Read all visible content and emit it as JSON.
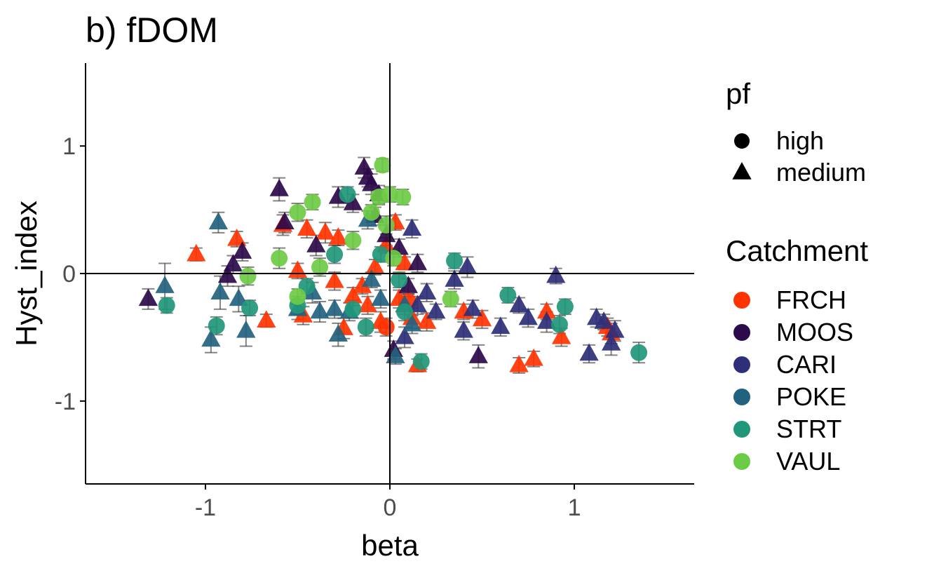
{
  "chart_data": {
    "type": "scatter",
    "title": "b) fDOM",
    "xlabel": "beta",
    "ylabel": "Hyst_index",
    "xlim": [
      -1.65,
      1.65
    ],
    "ylim": [
      -1.65,
      1.65
    ],
    "x_ticks": [
      -1,
      0,
      1
    ],
    "y_ticks": [
      -1,
      0,
      1
    ],
    "x_tick_labels": [
      "-1",
      "0",
      "1"
    ],
    "y_tick_labels": [
      "-1",
      "0",
      "1"
    ],
    "reference_lines": {
      "x": 0,
      "y": 0
    },
    "error_bars": true,
    "grid": false,
    "legend_position": "right",
    "legends": {
      "shape": {
        "title": "pf",
        "entries": [
          {
            "label": "high",
            "shape": "circle"
          },
          {
            "label": "medium",
            "shape": "triangle"
          }
        ]
      },
      "color": {
        "title": "Catchment",
        "entries": [
          {
            "label": "FRCH",
            "color": "#FF3300"
          },
          {
            "label": "MOOS",
            "color": "#2D0A4A"
          },
          {
            "label": "CARI",
            "color": "#2E2F78"
          },
          {
            "label": "POKE",
            "color": "#23627E"
          },
          {
            "label": "STRT",
            "color": "#21977A"
          },
          {
            "label": "VAUL",
            "color": "#6CCB44"
          }
        ]
      }
    },
    "series": [
      {
        "name": "FRCH",
        "points": [
          {
            "x": -1.05,
            "y": 0.15,
            "s": "t",
            "e": 0.05
          },
          {
            "x": -0.83,
            "y": 0.27,
            "s": "t",
            "e": 0.06
          },
          {
            "x": -0.67,
            "y": -0.37,
            "s": "t",
            "e": 0.05
          },
          {
            "x": -0.58,
            "y": 0.38,
            "s": "t",
            "e": 0.08
          },
          {
            "x": -0.5,
            "y": 0.02,
            "s": "t",
            "e": 0.06
          },
          {
            "x": -0.47,
            "y": -0.33,
            "s": "t",
            "e": 0.07
          },
          {
            "x": -0.45,
            "y": 0.35,
            "s": "t",
            "e": 0.07
          },
          {
            "x": -0.35,
            "y": 0.32,
            "s": "t",
            "e": 0.08
          },
          {
            "x": -0.3,
            "y": -0.06,
            "s": "t",
            "e": 0.07
          },
          {
            "x": -0.28,
            "y": 0.28,
            "s": "t",
            "e": 0.06
          },
          {
            "x": -0.25,
            "y": -0.43,
            "s": "t",
            "e": 0.08
          },
          {
            "x": -0.2,
            "y": -0.18,
            "s": "t",
            "e": 0.07
          },
          {
            "x": -0.15,
            "y": -0.1,
            "s": "t",
            "e": 0.06
          },
          {
            "x": -0.12,
            "y": -0.25,
            "s": "t",
            "e": 0.07
          },
          {
            "x": -0.08,
            "y": 0.05,
            "s": "t",
            "e": 0.06
          },
          {
            "x": -0.05,
            "y": -0.38,
            "s": "t",
            "e": 0.08
          },
          {
            "x": -0.02,
            "y": 0.22,
            "s": "t",
            "e": 0.06
          },
          {
            "x": 0.03,
            "y": 0.4,
            "s": "t",
            "e": 0.06
          },
          {
            "x": 0.05,
            "y": -0.2,
            "s": "t",
            "e": 0.07
          },
          {
            "x": 0.08,
            "y": 0.08,
            "s": "t",
            "e": 0.05
          },
          {
            "x": 0.12,
            "y": -0.35,
            "s": "t",
            "e": 0.08
          },
          {
            "x": 0.15,
            "y": -0.72,
            "s": "t",
            "e": 0.05
          },
          {
            "x": 0.2,
            "y": -0.38,
            "s": "t",
            "e": 0.07
          },
          {
            "x": 0.4,
            "y": -0.3,
            "s": "t",
            "e": 0.06
          },
          {
            "x": 0.5,
            "y": -0.36,
            "s": "t",
            "e": 0.07
          },
          {
            "x": 0.7,
            "y": -0.72,
            "s": "t",
            "e": 0.06
          },
          {
            "x": 0.78,
            "y": -0.67,
            "s": "t",
            "e": 0.06
          },
          {
            "x": 0.85,
            "y": -0.3,
            "s": "t",
            "e": 0.06
          },
          {
            "x": 0.93,
            "y": -0.5,
            "s": "t",
            "e": 0.07
          },
          {
            "x": 1.18,
            "y": -0.42,
            "s": "t",
            "e": 0.07
          },
          {
            "x": 1.2,
            "y": -0.47,
            "s": "t",
            "e": 0.08
          },
          {
            "x": -0.02,
            "y": -0.42,
            "s": "c",
            "e": 0.07
          },
          {
            "x": 0.1,
            "y": -0.22,
            "s": "c",
            "e": 0.06
          }
        ]
      },
      {
        "name": "MOOS",
        "points": [
          {
            "x": -1.31,
            "y": -0.2,
            "s": "t",
            "e": 0.08
          },
          {
            "x": -0.88,
            "y": -0.02,
            "s": "t",
            "e": 0.08
          },
          {
            "x": -0.85,
            "y": 0.07,
            "s": "t",
            "e": 0.07
          },
          {
            "x": -0.8,
            "y": 0.17,
            "s": "t",
            "e": 0.07
          },
          {
            "x": -0.6,
            "y": 0.66,
            "s": "t",
            "e": 0.09
          },
          {
            "x": -0.57,
            "y": 0.4,
            "s": "t",
            "e": 0.08
          },
          {
            "x": -0.4,
            "y": 0.22,
            "s": "t",
            "e": 0.08
          },
          {
            "x": -0.28,
            "y": 0.6,
            "s": "t",
            "e": 0.08
          },
          {
            "x": -0.2,
            "y": 0.55,
            "s": "t",
            "e": 0.07
          },
          {
            "x": -0.14,
            "y": 0.83,
            "s": "t",
            "e": 0.08
          },
          {
            "x": -0.12,
            "y": 0.75,
            "s": "t",
            "e": 0.07
          },
          {
            "x": -0.1,
            "y": 0.7,
            "s": "t",
            "e": 0.08
          },
          {
            "x": -0.08,
            "y": 0.45,
            "s": "t",
            "e": 0.07
          },
          {
            "x": -0.06,
            "y": 0.62,
            "s": "t",
            "e": 0.07
          },
          {
            "x": -0.02,
            "y": 0.3,
            "s": "t",
            "e": 0.08
          },
          {
            "x": 0.02,
            "y": -0.6,
            "s": "t",
            "e": 0.07
          },
          {
            "x": 0.05,
            "y": 0.2,
            "s": "t",
            "e": 0.07
          },
          {
            "x": 0.1,
            "y": -0.1,
            "s": "t",
            "e": 0.06
          },
          {
            "x": 0.15,
            "y": 0.08,
            "s": "t",
            "e": 0.07
          },
          {
            "x": 0.48,
            "y": -0.65,
            "s": "t",
            "e": 0.09
          }
        ]
      },
      {
        "name": "CARI",
        "points": [
          {
            "x": 0.08,
            "y": -0.5,
            "s": "t",
            "e": 0.08
          },
          {
            "x": 0.12,
            "y": 0.35,
            "s": "t",
            "e": 0.07
          },
          {
            "x": 0.15,
            "y": -0.25,
            "s": "t",
            "e": 0.07
          },
          {
            "x": 0.2,
            "y": -0.15,
            "s": "t",
            "e": 0.07
          },
          {
            "x": 0.25,
            "y": -0.3,
            "s": "t",
            "e": 0.06
          },
          {
            "x": 0.35,
            "y": -0.05,
            "s": "t",
            "e": 0.07
          },
          {
            "x": 0.4,
            "y": -0.45,
            "s": "t",
            "e": 0.07
          },
          {
            "x": 0.42,
            "y": 0.05,
            "s": "t",
            "e": 0.08
          },
          {
            "x": 0.45,
            "y": -0.28,
            "s": "t",
            "e": 0.07
          },
          {
            "x": 0.6,
            "y": -0.42,
            "s": "t",
            "e": 0.07
          },
          {
            "x": 0.7,
            "y": -0.25,
            "s": "t",
            "e": 0.06
          },
          {
            "x": 0.75,
            "y": -0.35,
            "s": "t",
            "e": 0.07
          },
          {
            "x": 0.85,
            "y": -0.38,
            "s": "t",
            "e": 0.08
          },
          {
            "x": 0.9,
            "y": -0.02,
            "s": "t",
            "e": 0.06
          },
          {
            "x": 1.08,
            "y": -0.63,
            "s": "t",
            "e": 0.07
          },
          {
            "x": 1.12,
            "y": -0.35,
            "s": "t",
            "e": 0.07
          },
          {
            "x": 1.16,
            "y": -0.38,
            "s": "t",
            "e": 0.06
          },
          {
            "x": 1.2,
            "y": -0.55,
            "s": "t",
            "e": 0.09
          },
          {
            "x": 1.22,
            "y": -0.45,
            "s": "t",
            "e": 0.08
          }
        ]
      },
      {
        "name": "POKE",
        "points": [
          {
            "x": -1.22,
            "y": -0.1,
            "s": "t",
            "e": 0.18
          },
          {
            "x": -0.97,
            "y": -0.52,
            "s": "t",
            "e": 0.1
          },
          {
            "x": -0.93,
            "y": 0.4,
            "s": "t",
            "e": 0.08
          },
          {
            "x": -0.92,
            "y": -0.15,
            "s": "t",
            "e": 0.13
          },
          {
            "x": -0.82,
            "y": -0.2,
            "s": "t",
            "e": 0.1
          },
          {
            "x": -0.78,
            "y": -0.45,
            "s": "t",
            "e": 0.12
          },
          {
            "x": -0.5,
            "y": -0.28,
            "s": "t",
            "e": 0.08
          },
          {
            "x": -0.42,
            "y": -0.15,
            "s": "t",
            "e": 0.08
          },
          {
            "x": -0.38,
            "y": -0.3,
            "s": "t",
            "e": 0.08
          },
          {
            "x": -0.3,
            "y": -0.28,
            "s": "t",
            "e": 0.07
          },
          {
            "x": -0.28,
            "y": -0.48,
            "s": "t",
            "e": 0.09
          },
          {
            "x": -0.22,
            "y": -0.3,
            "s": "t",
            "e": 0.07
          },
          {
            "x": -0.12,
            "y": 0.42,
            "s": "t",
            "e": 0.07
          },
          {
            "x": -0.1,
            "y": -0.05,
            "s": "t",
            "e": 0.06
          },
          {
            "x": -0.05,
            "y": -0.2,
            "s": "t",
            "e": 0.07
          },
          {
            "x": 0.03,
            "y": -0.65,
            "s": "t",
            "e": 0.06
          },
          {
            "x": 0.08,
            "y": -0.25,
            "s": "t",
            "e": 0.07
          },
          {
            "x": 0.12,
            "y": -0.4,
            "s": "t",
            "e": 0.07
          }
        ]
      },
      {
        "name": "STRT",
        "points": [
          {
            "x": -1.21,
            "y": -0.25,
            "s": "c",
            "e": 0.06
          },
          {
            "x": -0.94,
            "y": -0.41,
            "s": "c",
            "e": 0.07
          },
          {
            "x": -0.76,
            "y": -0.27,
            "s": "c",
            "e": 0.06
          },
          {
            "x": -0.5,
            "y": -0.25,
            "s": "c",
            "e": 0.07
          },
          {
            "x": -0.45,
            "y": -0.1,
            "s": "c",
            "e": 0.06
          },
          {
            "x": -0.3,
            "y": 0.15,
            "s": "c",
            "e": 0.07
          },
          {
            "x": -0.23,
            "y": 0.62,
            "s": "c",
            "e": 0.06
          },
          {
            "x": -0.2,
            "y": -0.28,
            "s": "c",
            "e": 0.07
          },
          {
            "x": -0.13,
            "y": -0.42,
            "s": "c",
            "e": 0.07
          },
          {
            "x": -0.05,
            "y": 0.15,
            "s": "c",
            "e": 0.06
          },
          {
            "x": 0.05,
            "y": -0.05,
            "s": "c",
            "e": 0.06
          },
          {
            "x": 0.08,
            "y": -0.3,
            "s": "c",
            "e": 0.07
          },
          {
            "x": 0.17,
            "y": -0.69,
            "s": "c",
            "e": 0.06
          },
          {
            "x": 0.35,
            "y": 0.1,
            "s": "c",
            "e": 0.06
          },
          {
            "x": 0.64,
            "y": -0.17,
            "s": "c",
            "e": 0.06
          },
          {
            "x": 0.92,
            "y": -0.4,
            "s": "c",
            "e": 0.07
          },
          {
            "x": 0.95,
            "y": -0.26,
            "s": "c",
            "e": 0.06
          },
          {
            "x": 1.35,
            "y": -0.62,
            "s": "c",
            "e": 0.08
          }
        ]
      },
      {
        "name": "VAUL",
        "points": [
          {
            "x": -0.77,
            "y": -0.02,
            "s": "c",
            "e": 0.07
          },
          {
            "x": -0.6,
            "y": 0.12,
            "s": "c",
            "e": 0.08
          },
          {
            "x": -0.5,
            "y": 0.48,
            "s": "c",
            "e": 0.07
          },
          {
            "x": -0.5,
            "y": -0.18,
            "s": "c",
            "e": 0.06
          },
          {
            "x": -0.42,
            "y": 0.56,
            "s": "c",
            "e": 0.06
          },
          {
            "x": -0.38,
            "y": 0.05,
            "s": "c",
            "e": 0.07
          },
          {
            "x": -0.2,
            "y": 0.26,
            "s": "c",
            "e": 0.07
          },
          {
            "x": -0.1,
            "y": 0.48,
            "s": "c",
            "e": 0.06
          },
          {
            "x": -0.06,
            "y": 0.6,
            "s": "c",
            "e": 0.06
          },
          {
            "x": -0.04,
            "y": 0.85,
            "s": "c",
            "e": 0.05
          },
          {
            "x": -0.02,
            "y": 0.38,
            "s": "c",
            "e": 0.07
          },
          {
            "x": 0.0,
            "y": 0.62,
            "s": "c",
            "e": 0.06
          },
          {
            "x": 0.02,
            "y": 0.12,
            "s": "c",
            "e": 0.06
          },
          {
            "x": 0.07,
            "y": 0.6,
            "s": "c",
            "e": 0.06
          },
          {
            "x": 0.33,
            "y": -0.2,
            "s": "c",
            "e": 0.06
          }
        ]
      }
    ]
  }
}
